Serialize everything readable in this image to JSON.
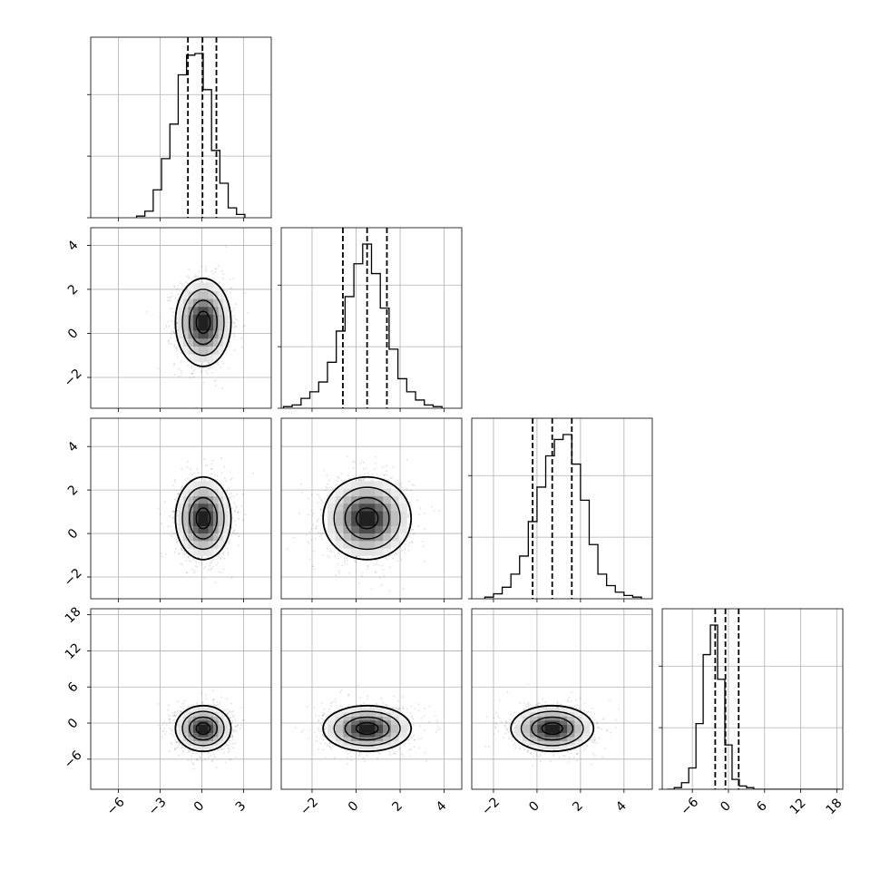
{
  "chart_data": {
    "type": "corner",
    "title": "",
    "parameter_labels": [
      "",
      "",
      "",
      ""
    ],
    "grid": true,
    "quantile_lines": "dashed",
    "params": [
      {
        "id": "p0",
        "range": [
          -8,
          5
        ],
        "ticks": [
          -6,
          -3,
          0,
          3
        ],
        "tick_labels": [
          "−6",
          "−3",
          "0",
          "3"
        ],
        "quantiles": [
          -1.0,
          0.05,
          1.05
        ],
        "hist": {
          "x0": -4.7,
          "dx": 0.6,
          "counts": [
            0.01,
            0.04,
            0.17,
            0.36,
            0.57,
            0.87,
            0.99,
            1.0,
            0.78,
            0.41,
            0.21,
            0.06,
            0.02
          ]
        }
      },
      {
        "id": "p1",
        "range": [
          -3.4,
          4.8
        ],
        "ticks": [
          -2,
          0,
          2,
          4
        ],
        "tick_labels": [
          "−2",
          "0",
          "2",
          "4"
        ],
        "quantiles": [
          -0.6,
          0.5,
          1.4
        ],
        "hist": {
          "x0": -3.3,
          "dx": 0.4,
          "counts": [
            0.01,
            0.02,
            0.06,
            0.1,
            0.16,
            0.28,
            0.47,
            0.68,
            0.88,
            1.0,
            0.82,
            0.61,
            0.36,
            0.18,
            0.1,
            0.05,
            0.02,
            0.01
          ]
        }
      },
      {
        "id": "p2",
        "range": [
          -3,
          5.3
        ],
        "ticks": [
          -2,
          0,
          2,
          4
        ],
        "tick_labels": [
          "−2",
          "0",
          "2",
          "4"
        ],
        "quantiles": [
          -0.2,
          0.7,
          1.6
        ],
        "hist": {
          "x0": -2.4,
          "dx": 0.4,
          "counts": [
            0.01,
            0.03,
            0.07,
            0.15,
            0.26,
            0.47,
            0.68,
            0.87,
            0.97,
            1.0,
            0.82,
            0.6,
            0.33,
            0.15,
            0.08,
            0.04,
            0.02,
            0.01
          ]
        }
      },
      {
        "id": "p3",
        "range": [
          -11,
          19
        ],
        "ticks": [
          -6,
          0,
          6,
          12,
          18
        ],
        "tick_labels": [
          "−6",
          "0",
          "6",
          "12",
          "18"
        ],
        "quantiles": [
          -2.2,
          -0.5,
          1.7
        ],
        "hist": {
          "x0": -10.2,
          "dx": 1.2,
          "counts": [
            0.0,
            0.01,
            0.04,
            0.13,
            0.4,
            0.82,
            1.0,
            0.67,
            0.27,
            0.06,
            0.02,
            0.01,
            0.0,
            0.0,
            0.0,
            0.0,
            0.0,
            0.0,
            0.0,
            0.0,
            0.0,
            0.0,
            0.0,
            0.0
          ]
        }
      }
    ],
    "pairs": [
      {
        "x": 0,
        "y": 1,
        "cx": 0.1,
        "cy": 0.5,
        "sx": 1.0,
        "sy": 1.0
      },
      {
        "x": 0,
        "y": 2,
        "cx": 0.1,
        "cy": 0.7,
        "sx": 1.0,
        "sy": 0.95
      },
      {
        "x": 1,
        "y": 2,
        "cx": 0.5,
        "cy": 0.7,
        "sx": 1.0,
        "sy": 0.95
      },
      {
        "x": 0,
        "y": 3,
        "cx": 0.1,
        "cy": -0.9,
        "sx": 1.0,
        "sy": 1.9
      },
      {
        "x": 1,
        "y": 3,
        "cx": 0.5,
        "cy": -0.9,
        "sx": 1.0,
        "sy": 1.9
      },
      {
        "x": 2,
        "y": 3,
        "cx": 0.7,
        "cy": -0.9,
        "sx": 0.95,
        "sy": 1.9
      }
    ]
  }
}
